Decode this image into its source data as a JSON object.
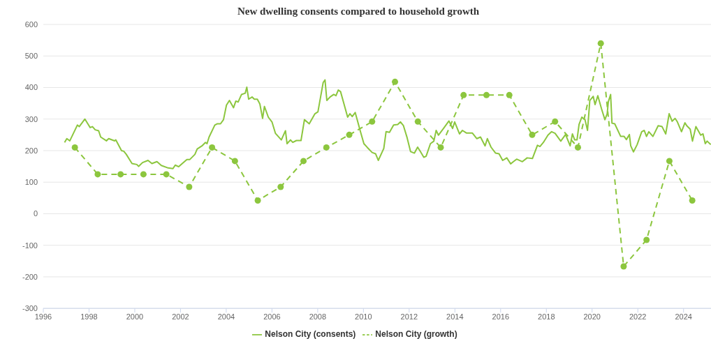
{
  "chart_data": {
    "type": "line",
    "title": "New dwelling consents compared to household growth",
    "xlim": [
      1996,
      2025.2
    ],
    "xticks": [
      1996,
      1998,
      2000,
      2002,
      2004,
      2006,
      2008,
      2010,
      2012,
      2014,
      2016,
      2018,
      2020,
      2022,
      2024
    ],
    "ylim": [
      -300,
      600
    ],
    "yticks": [
      -300,
      -200,
      -100,
      0,
      100,
      200,
      300,
      400,
      500,
      600
    ],
    "grid": "y",
    "legend": "bottom",
    "series": [
      {
        "name": "Nelson City (consents)",
        "color": "#8cc63e",
        "marker": "none",
        "line_style": "solid",
        "x": [
          1996.93,
          1997.03,
          1997.16,
          1997.49,
          1997.57,
          1997.82,
          1998.05,
          1998.15,
          1998.27,
          1998.42,
          1998.51,
          1998.76,
          1998.86,
          1999.12,
          1999.17,
          1999.42,
          1999.52,
          1999.63,
          1999.88,
          2000.09,
          2000.17,
          2000.34,
          2000.58,
          2000.75,
          2000.97,
          2001.16,
          2001.46,
          2001.67,
          2001.77,
          2001.92,
          2002.12,
          2002.28,
          2002.41,
          2002.63,
          2002.73,
          2002.94,
          2003.09,
          2003.16,
          2003.25,
          2003.5,
          2003.6,
          2003.75,
          2003.88,
          2004.01,
          2004.14,
          2004.32,
          2004.42,
          2004.52,
          2004.67,
          2004.83,
          2004.9,
          2004.98,
          2005.13,
          2005.23,
          2005.36,
          2005.47,
          2005.59,
          2005.67,
          2005.84,
          2006.0,
          2006.15,
          2006.41,
          2006.59,
          2006.66,
          2006.81,
          2006.91,
          2007.07,
          2007.27,
          2007.42,
          2007.63,
          2007.88,
          2008.01,
          2008.24,
          2008.32,
          2008.4,
          2008.54,
          2008.7,
          2008.8,
          2008.9,
          2009.0,
          2009.31,
          2009.41,
          2009.51,
          2009.64,
          2009.87,
          2010.02,
          2010.17,
          2010.38,
          2010.53,
          2010.65,
          2010.89,
          2010.99,
          2011.14,
          2011.32,
          2011.5,
          2011.62,
          2011.75,
          2011.91,
          2012.06,
          2012.23,
          2012.37,
          2012.5,
          2012.64,
          2012.74,
          2012.93,
          2013.08,
          2013.18,
          2013.28,
          2013.52,
          2013.74,
          2013.9,
          2013.99,
          2014.2,
          2014.33,
          2014.5,
          2014.76,
          2014.96,
          2015.12,
          2015.32,
          2015.42,
          2015.58,
          2015.78,
          2015.93,
          2016.09,
          2016.27,
          2016.44,
          2016.54,
          2016.7,
          2016.95,
          2017.16,
          2017.39,
          2017.61,
          2017.72,
          2017.87,
          2018.07,
          2018.23,
          2018.38,
          2018.63,
          2018.84,
          2019.04,
          2019.14,
          2019.24,
          2019.34,
          2019.43,
          2019.55,
          2019.69,
          2019.8,
          2019.9,
          2020.05,
          2020.13,
          2020.25,
          2020.41,
          2020.56,
          2020.66,
          2020.71,
          2020.81,
          2020.87,
          2020.99,
          2021.25,
          2021.4,
          2021.5,
          2021.63,
          2021.69,
          2021.81,
          2021.97,
          2022.17,
          2022.28,
          2022.38,
          2022.48,
          2022.66,
          2022.89,
          2023.06,
          2023.22,
          2023.37,
          2023.5,
          2023.63,
          2023.73,
          2023.91,
          2024.06,
          2024.14,
          2024.29,
          2024.39,
          2024.54,
          2024.75,
          2024.85,
          2024.95,
          2025.03,
          2025.19
        ],
        "values": [
          226,
          238,
          231,
          281,
          276,
          300,
          273,
          276,
          266,
          263,
          243,
          231,
          238,
          231,
          234,
          200,
          198,
          188,
          159,
          156,
          150,
          162,
          169,
          159,
          165,
          153,
          145,
          143,
          154,
          149,
          162,
          172,
          172,
          188,
          205,
          215,
          226,
          222,
          243,
          281,
          285,
          285,
          298,
          344,
          359,
          336,
          357,
          354,
          378,
          382,
          401,
          363,
          370,
          363,
          363,
          348,
          302,
          340,
          306,
          291,
          255,
          234,
          263,
          222,
          234,
          226,
          232,
          232,
          298,
          285,
          317,
          323,
          416,
          424,
          359,
          370,
          378,
          374,
          392,
          387,
          306,
          317,
          308,
          321,
          260,
          222,
          210,
          194,
          190,
          169,
          207,
          260,
          258,
          281,
          283,
          291,
          279,
          241,
          197,
          192,
          211,
          196,
          179,
          182,
          222,
          230,
          264,
          249,
          272,
          294,
          270,
          291,
          253,
          264,
          256,
          256,
          238,
          243,
          215,
          238,
          211,
          192,
          190,
          169,
          177,
          158,
          164,
          173,
          165,
          177,
          175,
          217,
          213,
          226,
          249,
          260,
          255,
          230,
          251,
          215,
          253,
          234,
          234,
          283,
          306,
          298,
          264,
          359,
          372,
          346,
          374,
          333,
          298,
          317,
          355,
          378,
          287,
          285,
          245,
          245,
          235,
          251,
          215,
          196,
          219,
          260,
          264,
          245,
          260,
          245,
          279,
          276,
          253,
          317,
          293,
          302,
          291,
          260,
          288,
          279,
          268,
          230,
          276,
          249,
          253,
          222,
          230,
          219
        ]
      },
      {
        "name": "Nelson City (growth)",
        "color": "#8cc63e",
        "marker": "circle",
        "line_style": "dashed",
        "x": [
          1997.38,
          1998.38,
          1999.38,
          2000.38,
          2001.38,
          2002.38,
          2003.38,
          2004.38,
          2005.38,
          2006.38,
          2007.38,
          2008.38,
          2009.38,
          2010.38,
          2011.38,
          2012.38,
          2013.38,
          2014.38,
          2015.38,
          2016.38,
          2017.38,
          2018.38,
          2019.38,
          2020.38,
          2021.38,
          2022.38,
          2023.38,
          2024.38
        ],
        "values": [
          210,
          125,
          125,
          125,
          125,
          85,
          210,
          167,
          42,
          85,
          167,
          210,
          250,
          292,
          418,
          292,
          210,
          376,
          376,
          376,
          250,
          292,
          210,
          540,
          -167,
          -83,
          167,
          42
        ]
      }
    ]
  }
}
